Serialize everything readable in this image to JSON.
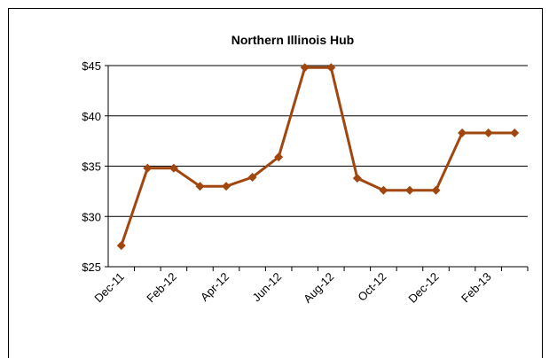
{
  "chart_data": {
    "type": "line",
    "title": "Northern Illinois Hub",
    "categories": [
      "Dec-11",
      null,
      "Feb-12",
      null,
      "Apr-12",
      null,
      "Jun-12",
      null,
      "Aug-12",
      null,
      "Oct-12",
      null,
      "Dec-12",
      null,
      "Feb-13",
      null
    ],
    "values": [
      27.1,
      34.8,
      34.8,
      33.0,
      33.0,
      33.9,
      35.9,
      44.8,
      44.8,
      33.8,
      32.6,
      32.6,
      32.6,
      38.3,
      38.3,
      38.3
    ],
    "color": "#a0460e",
    "ylim": [
      25,
      45
    ],
    "yticks": [
      {
        "value": 25,
        "label": "$25"
      },
      {
        "value": 30,
        "label": "$30"
      },
      {
        "value": 35,
        "label": "$35"
      },
      {
        "value": 40,
        "label": "$40"
      },
      {
        "value": 45,
        "label": "$45"
      }
    ],
    "grid": true
  }
}
